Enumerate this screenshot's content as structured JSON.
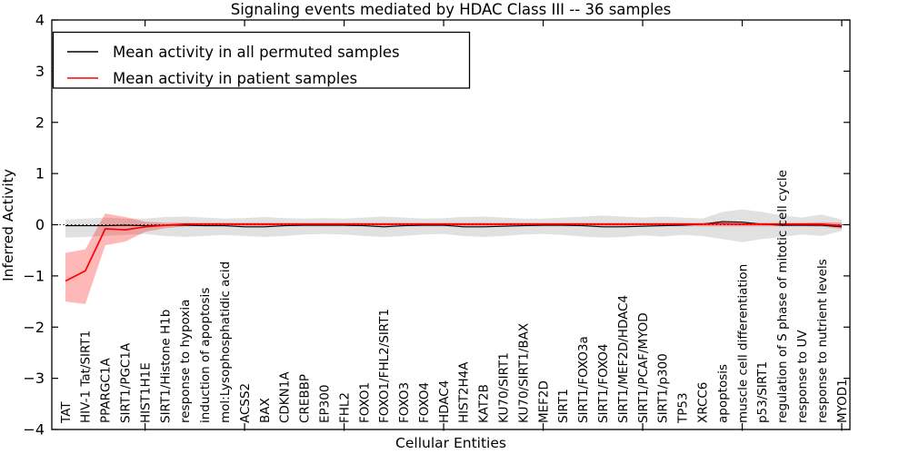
{
  "figure": {
    "title": "Signaling events mediated by HDAC Class III -- 36 samples"
  },
  "chart_data": {
    "type": "line",
    "title": "Signaling events mediated by HDAC Class III -- 36 samples",
    "xlabel": "Cellular Entities",
    "ylabel": "Inferred Activity",
    "ylim": [
      -4,
      4
    ],
    "yticks": [
      4,
      3,
      2,
      1,
      0,
      -1,
      -2,
      -3,
      -4
    ],
    "x_major_tick_indices": [
      4,
      9,
      14,
      19,
      24,
      29,
      34,
      39
    ],
    "grid": false,
    "legend_position": "upper left",
    "zero_line": {
      "y": 0,
      "style": "dotted",
      "color": "#000000"
    },
    "categories": [
      "TAT",
      "HIV-1 Tat/SIRT1",
      "PPARGC1A",
      "SIRT1/PGC1A",
      "HIST1H1E",
      "SIRT1/Histone H1b",
      "response to hypoxia",
      "induction of apoptosis",
      "mol:Lysophosphatidic acid",
      "ACSS2",
      "BAX",
      "CDKN1A",
      "CREBBP",
      "EP300",
      "FHL2",
      "FOXO1",
      "FOXO1/FHL2/SIRT1",
      "FOXO3",
      "FOXO4",
      "HDAC4",
      "HIST2H4A",
      "KAT2B",
      "KU70/SIRT1",
      "KU70/SIRT1/BAX",
      "MEF2D",
      "SIRT1",
      "SIRT1/FOXO3a",
      "SIRT1/FOXO4",
      "SIRT1/MEF2D/HDAC4",
      "SIRT1/PCAF/MYOD",
      "SIRT1/p300",
      "TP53",
      "XRCC6",
      "apoptosis",
      "muscle cell differentiation",
      "p53/SIRT1",
      "regulation of S phase of mitotic cell cycle",
      "response to UV",
      "response to nutrient levels",
      "MYOD1"
    ],
    "series": [
      {
        "name": "Mean activity in all permuted samples",
        "color": "#000000",
        "line_width": 1.1,
        "band_color": "#aaaaaa",
        "band_opacity": 0.35,
        "values": [
          -0.02,
          -0.02,
          -0.02,
          -0.01,
          -0.02,
          -0.01,
          -0.01,
          -0.02,
          -0.02,
          -0.04,
          -0.04,
          -0.02,
          -0.01,
          -0.01,
          -0.01,
          -0.02,
          -0.04,
          -0.02,
          -0.01,
          -0.01,
          -0.04,
          -0.04,
          -0.03,
          -0.02,
          -0.01,
          -0.01,
          -0.02,
          -0.04,
          -0.04,
          -0.03,
          -0.02,
          -0.01,
          0.01,
          0.06,
          0.05,
          0.01,
          -0.01,
          -0.01,
          -0.01,
          -0.04
        ],
        "band_upper": [
          0.1,
          0.12,
          0.14,
          0.12,
          0.12,
          0.15,
          0.16,
          0.14,
          0.12,
          0.13,
          0.15,
          0.13,
          0.12,
          0.13,
          0.12,
          0.14,
          0.16,
          0.14,
          0.12,
          0.13,
          0.15,
          0.16,
          0.14,
          0.12,
          0.12,
          0.14,
          0.16,
          0.18,
          0.16,
          0.14,
          0.16,
          0.14,
          0.12,
          0.25,
          0.3,
          0.25,
          0.18,
          0.14,
          0.2,
          0.1
        ],
        "band_lower": [
          -0.25,
          -0.24,
          -0.22,
          -0.2,
          -0.18,
          -0.22,
          -0.24,
          -0.22,
          -0.2,
          -0.22,
          -0.24,
          -0.22,
          -0.19,
          -0.18,
          -0.19,
          -0.22,
          -0.24,
          -0.22,
          -0.19,
          -0.18,
          -0.22,
          -0.24,
          -0.22,
          -0.19,
          -0.18,
          -0.2,
          -0.23,
          -0.25,
          -0.24,
          -0.21,
          -0.23,
          -0.2,
          -0.22,
          -0.28,
          -0.34,
          -0.28,
          -0.24,
          -0.19,
          -0.22,
          -0.12
        ]
      },
      {
        "name": "Mean activity in patient samples",
        "color": "#ff0000",
        "line_width": 1.7,
        "band_color": "#ff0000",
        "band_opacity": 0.28,
        "values": [
          -1.1,
          -0.9,
          -0.08,
          -0.1,
          -0.04,
          -0.01,
          0.01,
          0.01,
          0.01,
          0.01,
          0.01,
          0.01,
          0.01,
          0.01,
          0.01,
          0.01,
          0.01,
          0.01,
          0.01,
          0.01,
          0.01,
          0.01,
          0.01,
          0.01,
          0.01,
          0.01,
          0.01,
          0.01,
          0.01,
          0.01,
          0.01,
          0.01,
          0.01,
          0.02,
          0.01,
          0.01,
          0.01,
          0.01,
          0.01,
          -0.02
        ],
        "band_upper": [
          -0.55,
          -0.48,
          0.22,
          0.15,
          0.06,
          0.04,
          0.04,
          0.04,
          0.04,
          0.04,
          0.04,
          0.04,
          0.04,
          0.04,
          0.04,
          0.04,
          0.04,
          0.04,
          0.04,
          0.04,
          0.04,
          0.04,
          0.04,
          0.04,
          0.04,
          0.04,
          0.04,
          0.04,
          0.04,
          0.04,
          0.04,
          0.04,
          0.04,
          0.05,
          0.04,
          0.04,
          0.04,
          0.04,
          0.05,
          0.04
        ],
        "band_lower": [
          -1.5,
          -1.55,
          -0.4,
          -0.33,
          -0.14,
          -0.07,
          -0.03,
          -0.03,
          -0.03,
          -0.03,
          -0.03,
          -0.03,
          -0.03,
          -0.03,
          -0.03,
          -0.03,
          -0.03,
          -0.03,
          -0.03,
          -0.03,
          -0.03,
          -0.03,
          -0.03,
          -0.03,
          -0.03,
          -0.03,
          -0.03,
          -0.03,
          -0.03,
          -0.03,
          -0.03,
          -0.03,
          -0.03,
          -0.03,
          -0.03,
          -0.03,
          -0.03,
          -0.03,
          -0.04,
          -0.08
        ]
      }
    ]
  }
}
